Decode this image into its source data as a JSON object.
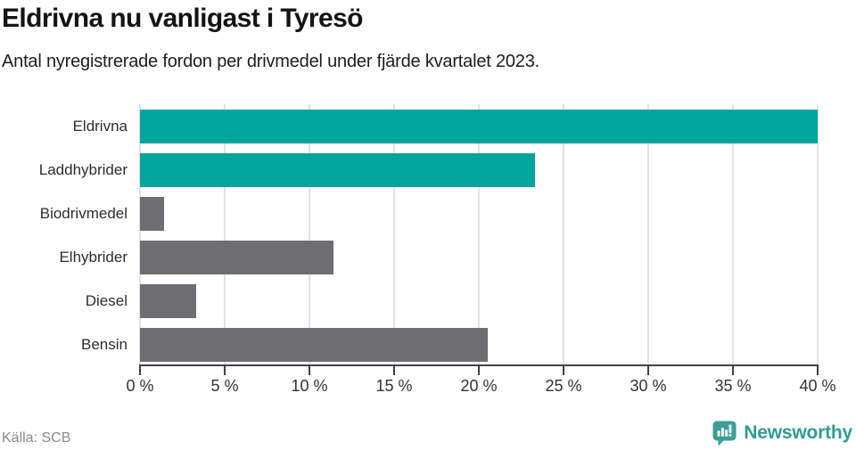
{
  "header": {
    "title": "Eldrivna nu vanligast i Tyresö",
    "subtitle": "Antal nyregistrerade fordon per drivmedel under fjärde kvartalet 2023."
  },
  "chart_data": {
    "type": "bar",
    "orientation": "horizontal",
    "title": "Eldrivna nu vanligast i Tyresö",
    "subtitle": "Antal nyregistrerade fordon per drivmedel under fjärde kvartalet 2023.",
    "categories": [
      "Eldrivna",
      "Laddhybrider",
      "Biodrivmedel",
      "Elhybrider",
      "Diesel",
      "Bensin"
    ],
    "values": [
      40.0,
      23.3,
      1.4,
      11.4,
      3.3,
      20.5
    ],
    "unit": "%",
    "bar_colors": [
      "#00a49c",
      "#00a49c",
      "#6e6e72",
      "#6e6e72",
      "#6e6e72",
      "#6e6e72"
    ],
    "xlabel": "",
    "ylabel": "",
    "xlim": [
      0,
      40
    ],
    "x_ticks": [
      0,
      5,
      10,
      15,
      20,
      25,
      30,
      35,
      40
    ],
    "x_tick_labels": [
      "0 %",
      "5 %",
      "10 %",
      "15 %",
      "20 %",
      "25 %",
      "30 %",
      "35 %",
      "40 %"
    ],
    "grid": "vertical",
    "legend": "none"
  },
  "footer": {
    "source": "Källa: SCB",
    "brand": "Newsworthy"
  },
  "colors": {
    "accent_teal": "#00a49c",
    "neutral_gray": "#6e6e72",
    "gridline": "#e2e2e2",
    "axis": "#424242",
    "brand_teal": "#3b9e95",
    "brand_text_teal": "#2f9b92"
  }
}
